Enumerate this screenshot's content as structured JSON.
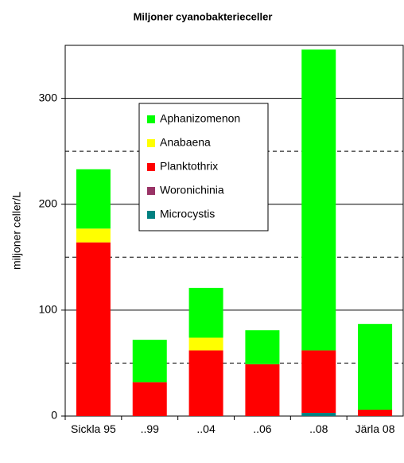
{
  "chart_data": {
    "type": "stacked_bar",
    "title": "Miljoner cyanobakterieceller",
    "y_label": "miljoner celler/L",
    "categories": [
      "Sickla 95",
      "..99",
      "..04",
      "..06",
      "..08",
      "Järla 08"
    ],
    "series": [
      {
        "name": "Aphanizomenon",
        "color": "#00ff00",
        "values": [
          56,
          40,
          47,
          32,
          284,
          81
        ]
      },
      {
        "name": "Anabaena",
        "color": "#ffff00",
        "values": [
          13,
          0,
          12,
          0,
          0,
          0
        ]
      },
      {
        "name": "Planktothrix",
        "color": "#ff0000",
        "values": [
          164,
          32,
          62,
          49,
          59,
          6
        ]
      },
      {
        "name": "Woronichinia",
        "color": "#993366",
        "values": [
          0,
          0,
          0,
          0,
          0,
          0
        ]
      },
      {
        "name": "Microcystis",
        "color": "#008080",
        "values": [
          0,
          0,
          0,
          0,
          3,
          0
        ]
      }
    ],
    "ylim": [
      0,
      350
    ],
    "yticks": [
      0,
      100,
      200,
      300
    ],
    "minor_grid": [
      50,
      150,
      250
    ],
    "grid": true
  }
}
